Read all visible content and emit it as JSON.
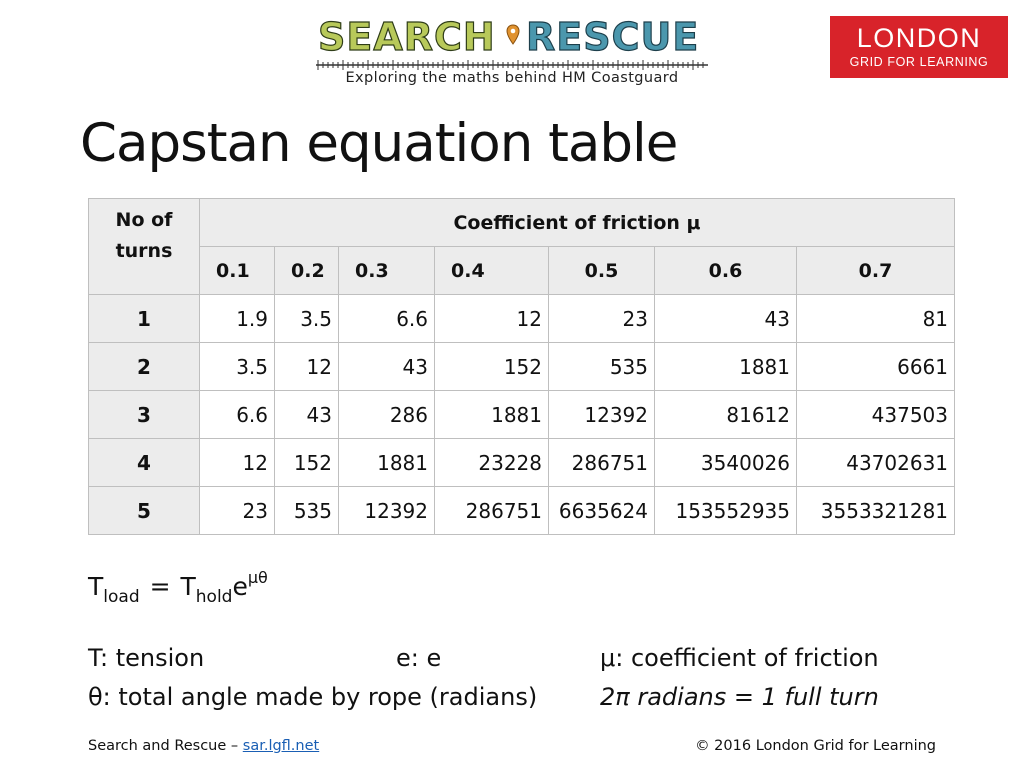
{
  "header": {
    "sar_logo": {
      "word_left": "SEARCH",
      "word_right": "RESCUE",
      "tagline": "Exploring the maths behind HM Coastguard",
      "colors": {
        "left": "#b8c95a",
        "right": "#4b97ad",
        "pin": "#e0922f"
      },
      "pin_icon": "location-pin-icon"
    },
    "lgfl_logo": {
      "line1": "LONDON",
      "line2": "GRID FOR LEARNING",
      "background": "#d8232a"
    }
  },
  "title": "Capstan equation table",
  "table": {
    "turns_header_line1": "No of",
    "turns_header_line2": "turns",
    "mu_header": "Coefficient of friction μ",
    "mu_values": [
      "0.1",
      "0.2",
      "0.3",
      "0.4",
      "0.5",
      "0.6",
      "0.7"
    ],
    "rows": [
      {
        "turns": "1",
        "values": [
          "1.9",
          "3.5",
          "6.6",
          "12",
          "23",
          "43",
          "81"
        ]
      },
      {
        "turns": "2",
        "values": [
          "3.5",
          "12",
          "43",
          "152",
          "535",
          "1881",
          "6661"
        ]
      },
      {
        "turns": "3",
        "values": [
          "6.6",
          "43",
          "286",
          "1881",
          "12392",
          "81612",
          "437503"
        ]
      },
      {
        "turns": "4",
        "values": [
          "12",
          "152",
          "1881",
          "23228",
          "286751",
          "3540026",
          "43702631"
        ]
      },
      {
        "turns": "5",
        "values": [
          "23",
          "535",
          "12392",
          "286751",
          "6635624",
          "153552935",
          "3553321281"
        ]
      }
    ]
  },
  "formula": {
    "t1": "T",
    "sub1": "load",
    "eq": "=",
    "t2": "T",
    "sub2": "hold",
    "base": "e",
    "exp": "μθ"
  },
  "legend": {
    "tension": "T: tension",
    "e": "e: e",
    "mu": "μ: coefficient of friction",
    "theta": "θ: total angle made by rope (radians)",
    "turn": "2π radians = 1 full turn"
  },
  "footer": {
    "left_text": "Search and Rescue – ",
    "link": "sar.lgfl.net",
    "right_text": "© 2016 London Grid for Learning"
  }
}
